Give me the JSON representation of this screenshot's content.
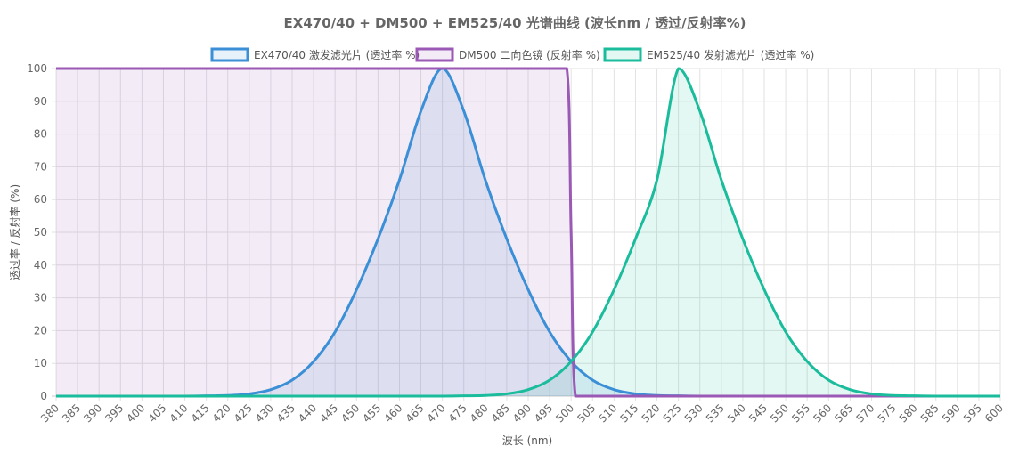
{
  "chart_data": {
    "type": "line",
    "title": "EX470/40 + DM500 + EM525/40 光谱曲线 (波长nm / 透过/反射率%)",
    "xlabel": "波长 (nm)",
    "ylabel": "透过率 / 反射率 (%)",
    "xlim": [
      380,
      600
    ],
    "ylim": [
      0,
      100
    ],
    "x_tick_step": 5,
    "y_tick_step": 10,
    "grid": true,
    "legend_position": "top-center",
    "series": [
      {
        "name": "EX470/40 激发滤光片 (透过率 %)",
        "color": "#3a8fd6",
        "fill": "rgba(58,143,214,0.12)",
        "x": [
          380,
          385,
          390,
          395,
          400,
          405,
          410,
          415,
          420,
          425,
          430,
          435,
          440,
          445,
          450,
          455,
          460,
          465,
          470,
          475,
          480,
          485,
          490,
          495,
          500,
          505,
          510,
          515,
          520,
          525,
          530,
          535,
          540,
          545,
          550,
          555,
          560,
          565,
          570,
          575,
          580,
          585,
          590,
          595,
          600
        ],
        "values": [
          0,
          0,
          0,
          0,
          0,
          0,
          0,
          0.1,
          0.2,
          0.7,
          2.0,
          4.9,
          10.6,
          19.6,
          32.5,
          48.0,
          66.0,
          87.0,
          100,
          87.0,
          66.0,
          48.0,
          32.5,
          19.6,
          10.6,
          4.9,
          2.0,
          0.7,
          0.2,
          0.1,
          0,
          0,
          0,
          0,
          0,
          0,
          0,
          0,
          0,
          0,
          0,
          0,
          0,
          0,
          0
        ]
      },
      {
        "name": "DM500 二向色镜 (反射率 %)",
        "color": "#9b59b6",
        "fill": "rgba(155,89,182,0.12)",
        "x": [
          380,
          385,
          390,
          395,
          400,
          405,
          410,
          415,
          420,
          425,
          430,
          435,
          440,
          445,
          450,
          455,
          460,
          465,
          470,
          475,
          480,
          485,
          490,
          495,
          499,
          500,
          501,
          505,
          510,
          515,
          520,
          525,
          530,
          535,
          540,
          545,
          550,
          555,
          560,
          565,
          570,
          575,
          580,
          585,
          590,
          595,
          600
        ],
        "values": [
          100,
          100,
          100,
          100,
          100,
          100,
          100,
          100,
          100,
          100,
          100,
          100,
          100,
          100,
          100,
          100,
          100,
          100,
          100,
          100,
          100,
          100,
          100,
          100,
          100,
          50,
          0,
          0,
          0,
          0,
          0,
          0,
          0,
          0,
          0,
          0,
          0,
          0,
          0,
          0,
          0,
          0,
          0,
          0,
          0,
          0,
          0
        ]
      },
      {
        "name": "EM525/40 发射滤光片 (透过率 %)",
        "color": "#1abc9c",
        "fill": "rgba(26,188,156,0.12)",
        "x": [
          380,
          385,
          390,
          395,
          400,
          405,
          410,
          415,
          420,
          425,
          430,
          435,
          440,
          445,
          450,
          455,
          460,
          465,
          470,
          475,
          480,
          485,
          490,
          495,
          500,
          505,
          510,
          515,
          520,
          525,
          530,
          535,
          540,
          545,
          550,
          555,
          560,
          565,
          570,
          575,
          580,
          585,
          590,
          595,
          600
        ],
        "values": [
          0,
          0,
          0,
          0,
          0,
          0,
          0,
          0,
          0,
          0,
          0,
          0,
          0,
          0,
          0,
          0,
          0,
          0,
          0,
          0.1,
          0.2,
          0.7,
          2.0,
          4.9,
          10.6,
          19.6,
          32.5,
          48.0,
          66.0,
          100,
          87.0,
          66.0,
          48.0,
          32.5,
          19.6,
          10.6,
          4.9,
          2.0,
          0.7,
          0.2,
          0.1,
          0,
          0,
          0,
          0
        ]
      }
    ]
  }
}
